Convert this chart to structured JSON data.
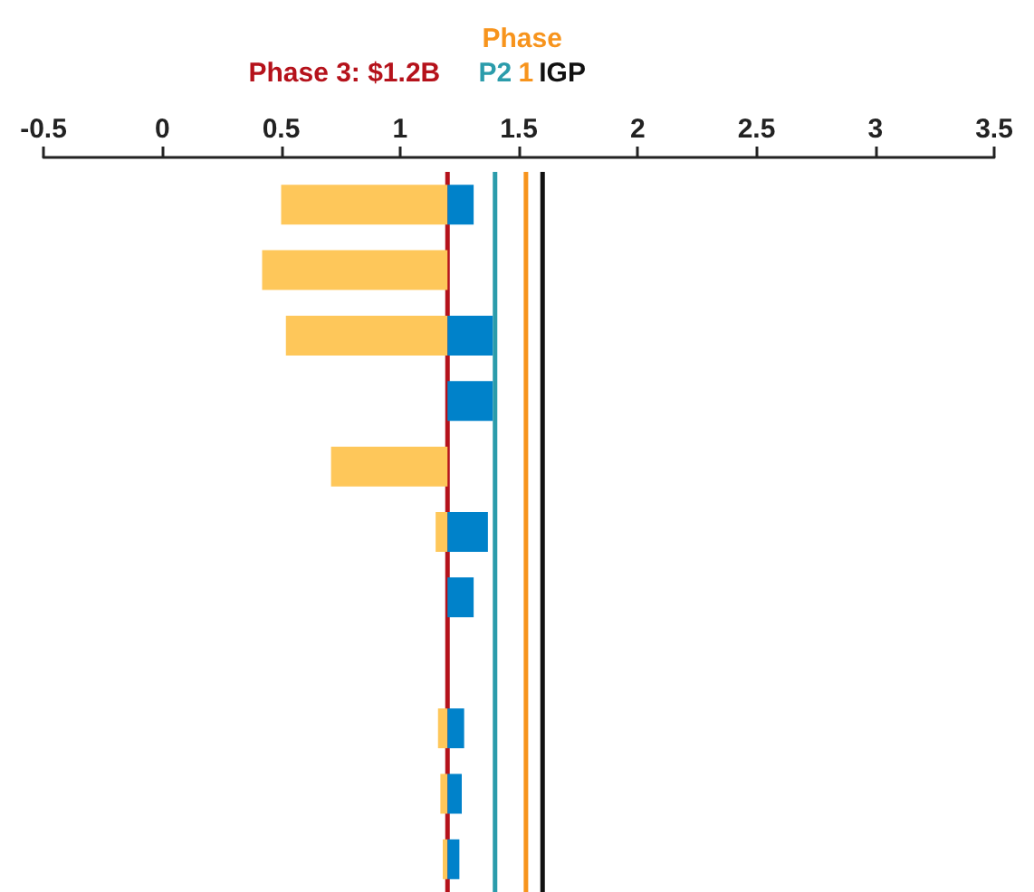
{
  "chart_data": {
    "type": "bar",
    "orientation": "horizontal",
    "categories": [
      null,
      null,
      null,
      null,
      null,
      null,
      null,
      null,
      null,
      null,
      null
    ],
    "series": [
      {
        "color": "#fec75a",
        "base": [
          1.2,
          1.2,
          1.2,
          null,
          1.2,
          1.2,
          null,
          null,
          1.2,
          1.2,
          1.2
        ],
        "values": [
          -0.7,
          -0.78,
          -0.68,
          null,
          -0.49,
          -0.05,
          null,
          null,
          -0.04,
          -0.03,
          -0.02
        ]
      },
      {
        "color": "#0082ca",
        "base": [
          1.2,
          null,
          1.2,
          1.2,
          null,
          1.2,
          1.2,
          null,
          1.2,
          1.2,
          1.2
        ],
        "values": [
          0.11,
          null,
          0.19,
          0.19,
          null,
          0.17,
          0.11,
          null,
          0.07,
          0.06,
          0.05
        ]
      }
    ],
    "xlim": [
      -0.5,
      3.5
    ],
    "xticks": [
      -0.5,
      0,
      0.5,
      1,
      1.5,
      2,
      2.5,
      3,
      3.5
    ],
    "ref_lines": [
      {
        "axis": "x",
        "value": 1.2,
        "label": "Phase 3: $1.2B",
        "color": "#b5121b"
      },
      {
        "axis": "x",
        "value": 1.4,
        "label": "P2",
        "color": "#2b9cab"
      },
      {
        "axis": "x",
        "value": 1.53,
        "label": "Phase 1",
        "color": "#f7941d"
      },
      {
        "axis": "x",
        "value": 1.6,
        "label": "IGP",
        "color": "#111111"
      }
    ],
    "tick_labels": "x",
    "grid": false
  }
}
